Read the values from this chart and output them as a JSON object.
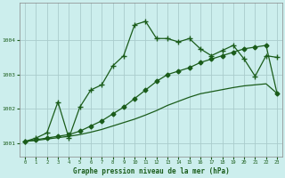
{
  "title": "Graphe pression niveau de la mer (hPa)",
  "background_color": "#cceeed",
  "plot_bg_color": "#cceeed",
  "grid_color": "#aacccc",
  "line_color": "#1a5c1a",
  "xlim": [
    -0.5,
    23.5
  ],
  "ylim": [
    1000.6,
    1005.1
  ],
  "yticks": [
    1001,
    1002,
    1003,
    1004
  ],
  "xticks": [
    0,
    1,
    2,
    3,
    4,
    5,
    6,
    7,
    8,
    9,
    10,
    11,
    12,
    13,
    14,
    15,
    16,
    17,
    18,
    19,
    20,
    21,
    22,
    23
  ],
  "series1_x": [
    0,
    1,
    2,
    3,
    4,
    5,
    6,
    7,
    8,
    9,
    10,
    11,
    12,
    13,
    14,
    15,
    16,
    17,
    18,
    19,
    20,
    21,
    22,
    23
  ],
  "series1_y": [
    1001.05,
    1001.15,
    1001.3,
    1002.2,
    1001.15,
    1002.05,
    1002.55,
    1002.7,
    1003.25,
    1003.55,
    1004.45,
    1004.55,
    1004.05,
    1004.05,
    1003.95,
    1004.05,
    1003.75,
    1003.55,
    1003.7,
    1003.85,
    1003.45,
    1002.95,
    1003.55,
    1003.5
  ],
  "series2_x": [
    0,
    1,
    2,
    3,
    4,
    5,
    6,
    7,
    8,
    9,
    10,
    11,
    12,
    13,
    14,
    15,
    16,
    17,
    18,
    19,
    20,
    21,
    22,
    23
  ],
  "series2_y": [
    1001.05,
    1001.1,
    1001.15,
    1001.2,
    1001.25,
    1001.35,
    1001.5,
    1001.65,
    1001.85,
    1002.05,
    1002.3,
    1002.55,
    1002.8,
    1003.0,
    1003.1,
    1003.2,
    1003.35,
    1003.45,
    1003.55,
    1003.65,
    1003.75,
    1003.8,
    1003.85,
    1002.45
  ],
  "series3_x": [
    0,
    1,
    2,
    3,
    4,
    5,
    6,
    7,
    8,
    9,
    10,
    11,
    12,
    13,
    14,
    15,
    16,
    17,
    18,
    19,
    20,
    21,
    22,
    23
  ],
  "series3_y": [
    1001.05,
    1001.08,
    1001.12,
    1001.16,
    1001.2,
    1001.25,
    1001.32,
    1001.4,
    1001.5,
    1001.6,
    1001.7,
    1001.82,
    1001.95,
    1002.1,
    1002.22,
    1002.34,
    1002.44,
    1002.5,
    1002.56,
    1002.62,
    1002.67,
    1002.7,
    1002.73,
    1002.45
  ]
}
